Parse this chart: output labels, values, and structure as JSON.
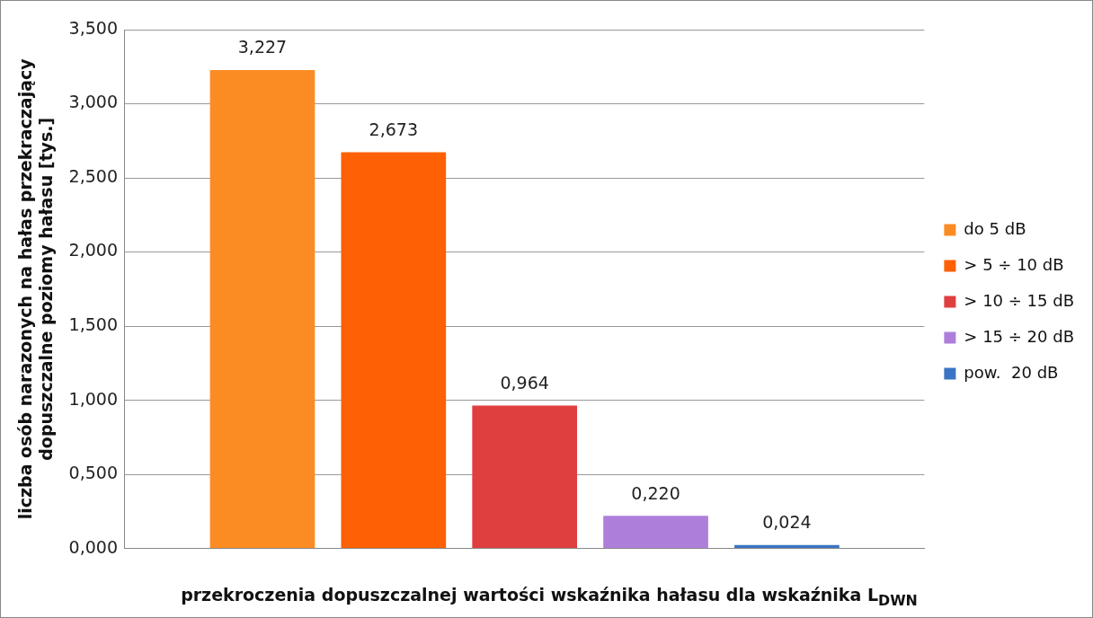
{
  "chart_data": {
    "type": "bar",
    "categories": [
      null
    ],
    "series": [
      {
        "name": "do 5 dB",
        "color": "#fb8c23",
        "values": [
          3.227
        ],
        "value_labels": [
          "3,227"
        ]
      },
      {
        "name": "> 5 ÷ 10 dB",
        "color": "#fe6005",
        "values": [
          2.673
        ],
        "value_labels": [
          "2,673"
        ]
      },
      {
        "name": "> 10 ÷ 15 dB",
        "color": "#df3f3f",
        "values": [
          0.964
        ],
        "value_labels": [
          "0,964"
        ]
      },
      {
        "name": "> 15 ÷ 20 dB",
        "color": "#ae7fda",
        "values": [
          0.22
        ],
        "value_labels": [
          "0,220"
        ]
      },
      {
        "name": "pow.  20 dB",
        "color": "#3a74c4",
        "values": [
          0.024
        ],
        "value_labels": [
          "0,024"
        ]
      }
    ],
    "ylabel": "liczba osób narazonych na hałas przekraczający\ndopuszczalne poziomy hałasu [tys.]",
    "xlabel": "przekroczenia dopuszczalnej wartości wskaźnika hałasu dla wskaźnika L$_{DWN}$",
    "ylim": [
      0,
      3.5
    ],
    "yticks": [
      {
        "value": 0,
        "label": "0,000"
      },
      {
        "value": 0.5,
        "label": "0,500"
      },
      {
        "value": 1,
        "label": "1,000"
      },
      {
        "value": 1.5,
        "label": "1,500"
      },
      {
        "value": 2,
        "label": "2,000"
      },
      {
        "value": 2.5,
        "label": "2,500"
      },
      {
        "value": 3,
        "label": "3,000"
      },
      {
        "value": 3.5,
        "label": "3,500"
      }
    ],
    "grid": "y",
    "legend": "right"
  }
}
